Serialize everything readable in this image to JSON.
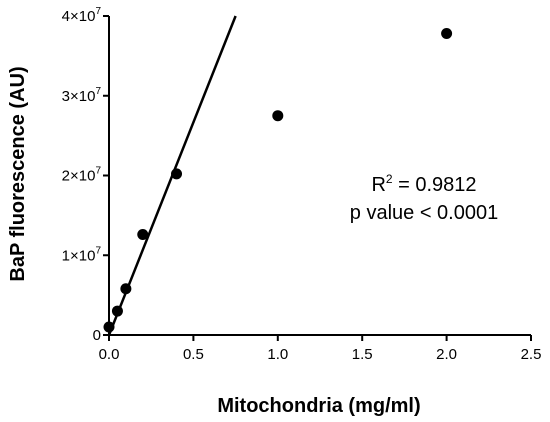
{
  "chart_data": {
    "type": "scatter",
    "title": "",
    "xlabel": "Mitochondria (mg/ml)",
    "ylabel": "BaP fluorescence (AU)",
    "xlim": [
      0,
      2.5
    ],
    "ylim": [
      0,
      40000000
    ],
    "grid": false,
    "x_ticks": [
      0,
      0.5,
      1,
      1.5,
      2,
      2.5
    ],
    "x_tick_labels": [
      "0.0",
      "0.5",
      "1.0",
      "1.5",
      "2.0",
      "2.5"
    ],
    "y_ticks": [
      0,
      10000000,
      20000000,
      30000000,
      40000000
    ],
    "y_tick_labels": [
      {
        "mantissa": "0",
        "exp": ""
      },
      {
        "mantissa": "1×10",
        "exp": "7"
      },
      {
        "mantissa": "2×10",
        "exp": "7"
      },
      {
        "mantissa": "3×10",
        "exp": "7"
      },
      {
        "mantissa": "4×10",
        "exp": "7"
      }
    ],
    "points": [
      {
        "x": 0.0,
        "y": 1000000
      },
      {
        "x": 0.05,
        "y": 3000000
      },
      {
        "x": 0.1,
        "y": 5800000
      },
      {
        "x": 0.2,
        "y": 12600000
      },
      {
        "x": 0.4,
        "y": 20200000
      },
      {
        "x": 1.0,
        "y": 27500000
      },
      {
        "x": 2.0,
        "y": 37800000
      }
    ],
    "fit_line": {
      "x0": 0.0,
      "y0": 0,
      "x1": 0.75,
      "y1": 40000000
    },
    "annotation": {
      "r2_label": "R",
      "r2_sup": "2",
      "r2_value": " = 0.9812",
      "p_text": "p value < 0.0001"
    },
    "colors": {
      "marker": "#000000",
      "line": "#000000",
      "axis": "#000000"
    }
  }
}
